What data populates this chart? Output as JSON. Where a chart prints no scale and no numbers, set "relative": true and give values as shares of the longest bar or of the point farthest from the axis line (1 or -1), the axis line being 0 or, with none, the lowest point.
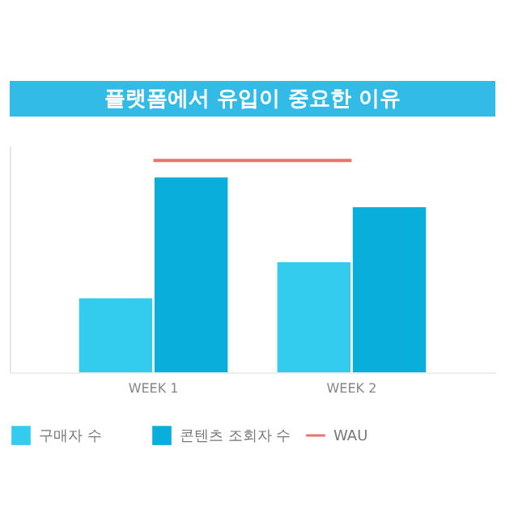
{
  "chart_data": {
    "type": "bar",
    "title": "플랫폼에서 유입이 중요한 이유",
    "relative": true,
    "categories": [
      "WEEK 1",
      "WEEK 2"
    ],
    "series": [
      {
        "name": "구매자 수",
        "color": "#33ccee",
        "values": [
          0.35,
          0.52
        ]
      },
      {
        "name": "콘텐츠 조회자 수",
        "color": "#0aaedb",
        "values": [
          0.92,
          0.78
        ]
      },
      {
        "name": "WAU",
        "type": "line",
        "color": "#f07070",
        "values": [
          1,
          1
        ]
      }
    ],
    "legend": "bottom",
    "grid": false
  }
}
